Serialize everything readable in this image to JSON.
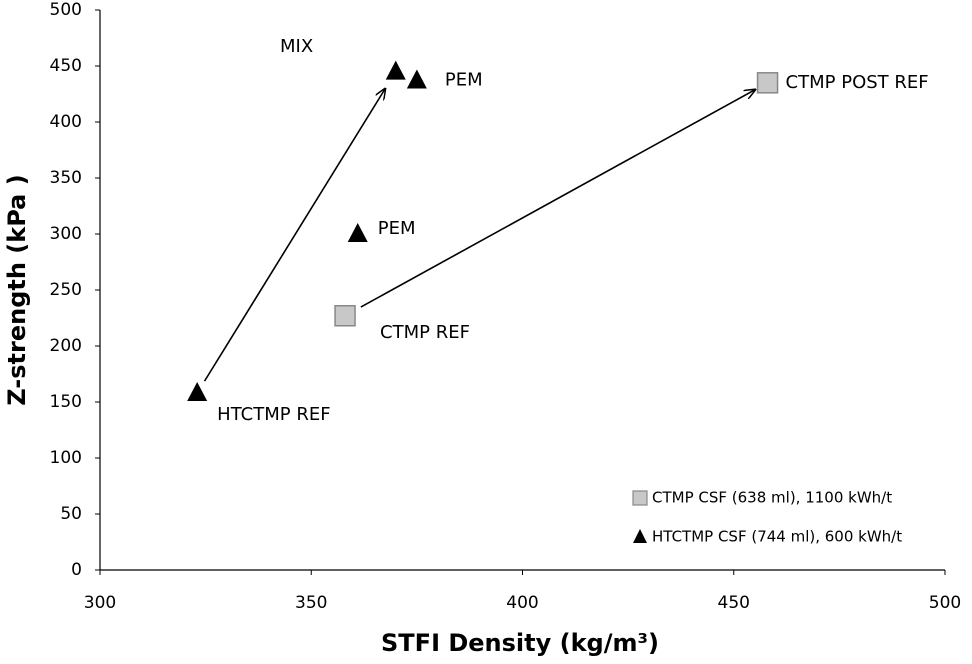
{
  "chart_data": {
    "type": "scatter",
    "x_label": "STFI Density (kg/m³)",
    "y_label": "Z-strength (kPa )",
    "xlim": [
      300,
      500
    ],
    "xticks": [
      300,
      350,
      400,
      450,
      500
    ],
    "ylim": [
      0,
      500
    ],
    "yticks": [
      0,
      50,
      100,
      150,
      200,
      250,
      300,
      350,
      400,
      450,
      500
    ],
    "grid": false,
    "legend": "lower right",
    "annotations": [
      "MIX"
    ],
    "series": [
      {
        "name": "CTMP CSF (638 ml), 1100 kWh/t",
        "color": "#c8c8c8",
        "marker": "square",
        "x": [
          358,
          458
        ],
        "values": [
          227,
          435
        ],
        "labels": [
          "CTMP REF",
          "CTMP POST REF"
        ]
      },
      {
        "name": "HTCTMP CSF (744 ml), 600 kWh/t",
        "color": "#000000",
        "marker": "triangle",
        "x": [
          323,
          370,
          375,
          361
        ],
        "values": [
          158,
          445,
          437,
          300
        ],
        "labels": [
          "HTCTMP REF",
          null,
          "PEM",
          "PEM"
        ]
      }
    ]
  }
}
